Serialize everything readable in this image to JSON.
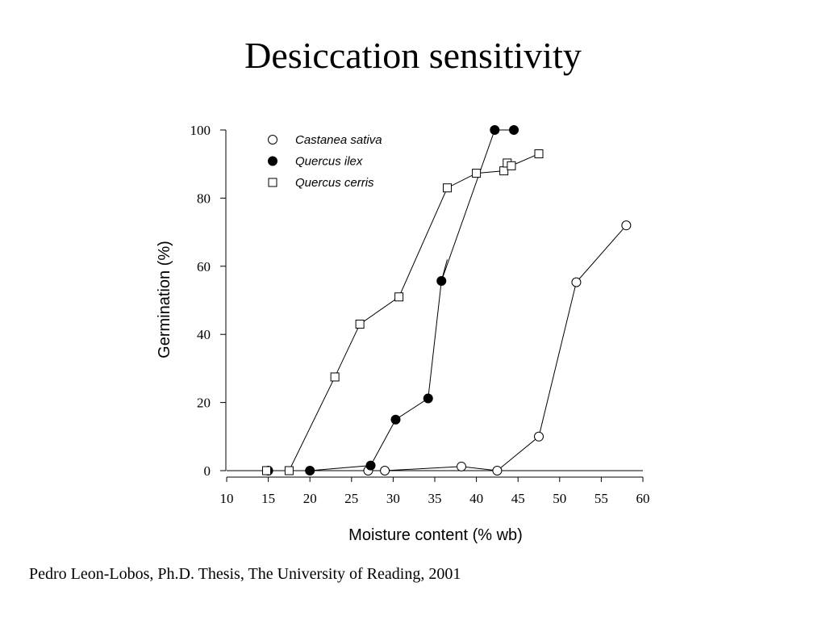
{
  "slide": {
    "title": "Desiccation sensitivity",
    "citation": "Pedro Leon-Lobos, Ph.D. Thesis, The University of Reading, 2001"
  },
  "chart_data": {
    "type": "scatter",
    "title": "",
    "xlabel": "Moisture content (% wb)",
    "ylabel": "Germination (%)",
    "xlim": [
      10,
      60
    ],
    "ylim": [
      0,
      100
    ],
    "xticks": [
      10,
      15,
      20,
      25,
      30,
      35,
      40,
      45,
      50,
      55,
      60
    ],
    "yticks": [
      0,
      20,
      40,
      60,
      80,
      100
    ],
    "grid": false,
    "legend_position": "top-left",
    "series": [
      {
        "name": "Castanea sativa",
        "marker": "open-circle",
        "x": [
          27,
          29,
          38.2,
          42.5,
          47.5,
          52,
          58
        ],
        "y": [
          0,
          0,
          1.2,
          0,
          10,
          55.3,
          72
        ]
      },
      {
        "name": "Quercus ilex",
        "marker": "filled-circle",
        "x": [
          15,
          20,
          27.3,
          30.3,
          34.2,
          35.8,
          42.2,
          44.5
        ],
        "y": [
          0,
          0,
          1.5,
          15,
          21.2,
          55.7,
          100,
          100
        ]
      },
      {
        "name": "Quercus cerris",
        "marker": "open-square",
        "x": [
          14.8,
          17.5,
          23,
          26,
          30.7,
          36.5,
          40,
          43.3,
          43.7,
          44.2,
          47.5
        ],
        "y": [
          0,
          0,
          27.5,
          43,
          51,
          83,
          87.3,
          88,
          90.3,
          89.5,
          93
        ]
      }
    ]
  }
}
